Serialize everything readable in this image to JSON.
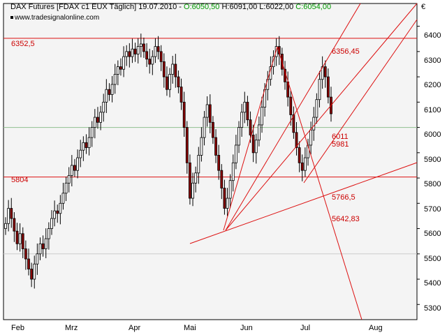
{
  "header": {
    "title": "DAX Futures [FDAX c1 EUX  Täglich] 19.07.2010",
    "open": "O:6050,50",
    "high": "H:6091,00",
    "low": "L:6022,00",
    "close": "C:6054,00",
    "watermark": "www.tradesignalonline.com",
    "currency": "€"
  },
  "colors": {
    "bull_candle": "#ffffff",
    "bear_candle": "#8b0000",
    "trendline": "#dd1111",
    "hline_green": "#90c090",
    "hline_gray": "#cccccc",
    "plot_bg": "#f4f4f4",
    "value_open_close": "#009900"
  },
  "chart_data": {
    "type": "candlestick",
    "ylim": [
      5240,
      6490
    ],
    "y_ticks": [
      "6400",
      "6300",
      "6200",
      "6100",
      "6000",
      "5900",
      "5800",
      "5700",
      "5600",
      "5500",
      "5400",
      "5300"
    ],
    "x_ticks": [
      "Feb",
      "Mrz",
      "Apr",
      "Mai",
      "Jun",
      "Jul",
      "Aug"
    ],
    "level_labels": [
      "6352,5",
      "5804",
      "6356,45",
      "6011",
      "5981",
      "5766,5",
      "5642,83"
    ],
    "horizontal_levels": [
      6352.5,
      5804
    ],
    "horizontal_gridlines": [
      6000,
      5500
    ],
    "candles_close": [
      5620,
      5680,
      5640,
      5590,
      5540,
      5580,
      5520,
      5480,
      5440,
      5400,
      5460,
      5500,
      5540,
      5520,
      5560,
      5600,
      5640,
      5670,
      5660,
      5700,
      5740,
      5780,
      5810,
      5850,
      5830,
      5880,
      5910,
      5940,
      5920,
      5960,
      6000,
      6040,
      6020,
      6060,
      6100,
      6150,
      6130,
      6170,
      6210,
      6240,
      6230,
      6280,
      6300,
      6280,
      6310,
      6290,
      6320,
      6330,
      6300,
      6270,
      6250,
      6280,
      6320,
      6300,
      6260,
      6200,
      6150,
      6210,
      6250,
      6200,
      6160,
      6100,
      6000,
      5860,
      5720,
      5780,
      5820,
      5890,
      5960,
      6040,
      6090,
      6020,
      5960,
      5890,
      5830,
      5760,
      5680,
      5720,
      5790,
      5860,
      5930,
      6000,
      6060,
      6100,
      6030,
      5970,
      5900,
      5950,
      6010,
      6080,
      6150,
      6190,
      6240,
      6280,
      6320,
      6290,
      6230,
      6180,
      6120,
      6050,
      5980,
      5920,
      5860,
      5830,
      5880,
      5930,
      5990,
      6040,
      6110,
      6190,
      6240,
      6200,
      6120,
      6054
    ]
  }
}
